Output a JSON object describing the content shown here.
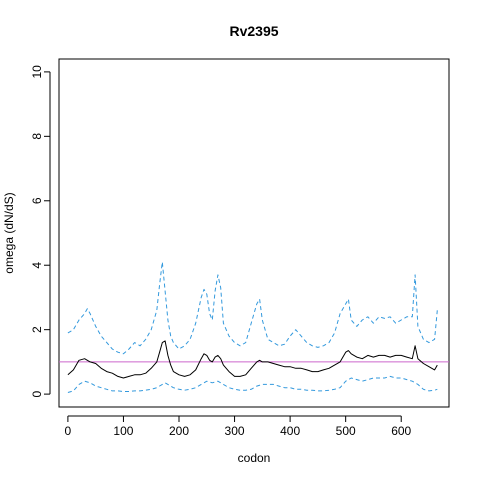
{
  "chart_data": {
    "type": "line",
    "title": "Rv2395",
    "xlabel": "codon",
    "ylabel": "omega (dN/dS)",
    "xlim": [
      -16,
      686
    ],
    "ylim": [
      -0.4,
      10.4
    ],
    "xticks": [
      0,
      100,
      200,
      300,
      400,
      500,
      600
    ],
    "yticks": [
      0,
      2,
      4,
      6,
      8,
      10
    ],
    "x_tick_labels": [
      "0",
      "100",
      "200",
      "300",
      "400",
      "500",
      "600"
    ],
    "y_tick_labels": [
      "0",
      "2",
      "4",
      "6",
      "8",
      "10"
    ],
    "reference_line": {
      "y": 1,
      "color": "#cc66cc"
    },
    "grid": false,
    "series": [
      {
        "style": "solid",
        "color": "#000000",
        "x": [
          0,
          10,
          20,
          30,
          40,
          50,
          60,
          70,
          80,
          90,
          100,
          110,
          120,
          130,
          140,
          150,
          160,
          165,
          170,
          175,
          180,
          185,
          190,
          200,
          210,
          220,
          230,
          240,
          245,
          250,
          255,
          260,
          265,
          270,
          275,
          280,
          290,
          300,
          310,
          320,
          330,
          340,
          345,
          350,
          360,
          370,
          380,
          390,
          400,
          410,
          420,
          430,
          440,
          450,
          460,
          470,
          480,
          490,
          500,
          505,
          510,
          520,
          530,
          540,
          550,
          560,
          570,
          580,
          590,
          600,
          610,
          620,
          625,
          630,
          640,
          650,
          660,
          665
        ],
        "y": [
          0.6,
          0.75,
          1.05,
          1.1,
          1.0,
          0.95,
          0.8,
          0.7,
          0.65,
          0.55,
          0.5,
          0.55,
          0.6,
          0.6,
          0.65,
          0.8,
          1.0,
          1.3,
          1.6,
          1.65,
          1.2,
          0.9,
          0.7,
          0.6,
          0.55,
          0.6,
          0.75,
          1.1,
          1.25,
          1.2,
          1.05,
          1.0,
          1.15,
          1.2,
          1.1,
          0.9,
          0.7,
          0.55,
          0.55,
          0.6,
          0.8,
          1.0,
          1.05,
          1.0,
          1.0,
          0.95,
          0.9,
          0.85,
          0.85,
          0.8,
          0.8,
          0.75,
          0.7,
          0.7,
          0.75,
          0.8,
          0.9,
          1.0,
          1.3,
          1.35,
          1.25,
          1.15,
          1.1,
          1.2,
          1.15,
          1.2,
          1.2,
          1.15,
          1.2,
          1.2,
          1.15,
          1.1,
          1.5,
          1.1,
          0.95,
          0.85,
          0.75,
          0.9
        ]
      },
      {
        "style": "dashed",
        "color": "#3399dd",
        "x": [
          0,
          10,
          20,
          30,
          35,
          40,
          50,
          60,
          70,
          80,
          90,
          100,
          110,
          120,
          130,
          140,
          150,
          160,
          165,
          170,
          175,
          180,
          185,
          190,
          200,
          210,
          220,
          230,
          240,
          245,
          250,
          255,
          260,
          265,
          270,
          275,
          280,
          290,
          300,
          310,
          320,
          330,
          340,
          345,
          350,
          360,
          370,
          380,
          390,
          400,
          410,
          420,
          430,
          440,
          450,
          460,
          470,
          480,
          490,
          500,
          505,
          510,
          520,
          530,
          540,
          550,
          560,
          570,
          580,
          590,
          600,
          610,
          620,
          625,
          630,
          640,
          650,
          660,
          665
        ],
        "y": [
          1.9,
          2.0,
          2.3,
          2.5,
          2.65,
          2.5,
          2.1,
          1.8,
          1.6,
          1.4,
          1.3,
          1.25,
          1.4,
          1.6,
          1.5,
          1.7,
          2.0,
          2.6,
          3.4,
          4.1,
          3.2,
          2.3,
          1.8,
          1.6,
          1.4,
          1.5,
          1.7,
          2.2,
          3.0,
          3.25,
          3.1,
          2.5,
          2.3,
          3.2,
          3.7,
          3.3,
          2.2,
          1.8,
          1.6,
          1.5,
          1.6,
          2.2,
          2.8,
          2.95,
          2.3,
          1.7,
          1.6,
          1.5,
          1.55,
          1.8,
          2.0,
          1.8,
          1.6,
          1.5,
          1.45,
          1.5,
          1.6,
          1.9,
          2.5,
          2.8,
          2.95,
          2.3,
          2.1,
          2.3,
          2.4,
          2.2,
          2.4,
          2.35,
          2.4,
          2.2,
          2.3,
          2.4,
          2.4,
          3.7,
          2.1,
          1.7,
          1.6,
          1.7,
          2.6
        ]
      },
      {
        "style": "dashed",
        "color": "#3399dd",
        "x": [
          0,
          10,
          20,
          30,
          40,
          50,
          60,
          70,
          80,
          90,
          100,
          110,
          120,
          130,
          140,
          150,
          160,
          170,
          175,
          180,
          190,
          200,
          210,
          220,
          230,
          240,
          250,
          260,
          270,
          280,
          290,
          300,
          310,
          320,
          330,
          340,
          350,
          360,
          370,
          380,
          390,
          400,
          410,
          420,
          430,
          440,
          450,
          460,
          470,
          480,
          490,
          500,
          510,
          520,
          530,
          540,
          550,
          560,
          570,
          580,
          590,
          600,
          610,
          620,
          630,
          640,
          650,
          660,
          665
        ],
        "y": [
          0.05,
          0.1,
          0.3,
          0.4,
          0.35,
          0.25,
          0.2,
          0.15,
          0.1,
          0.1,
          0.08,
          0.08,
          0.1,
          0.1,
          0.12,
          0.15,
          0.2,
          0.3,
          0.35,
          0.3,
          0.2,
          0.15,
          0.12,
          0.15,
          0.2,
          0.3,
          0.4,
          0.35,
          0.4,
          0.3,
          0.2,
          0.15,
          0.12,
          0.12,
          0.15,
          0.25,
          0.3,
          0.3,
          0.3,
          0.25,
          0.2,
          0.2,
          0.15,
          0.15,
          0.12,
          0.12,
          0.1,
          0.1,
          0.12,
          0.15,
          0.2,
          0.4,
          0.5,
          0.45,
          0.4,
          0.45,
          0.5,
          0.5,
          0.5,
          0.55,
          0.5,
          0.5,
          0.45,
          0.4,
          0.3,
          0.15,
          0.1,
          0.12,
          0.15
        ]
      }
    ]
  }
}
